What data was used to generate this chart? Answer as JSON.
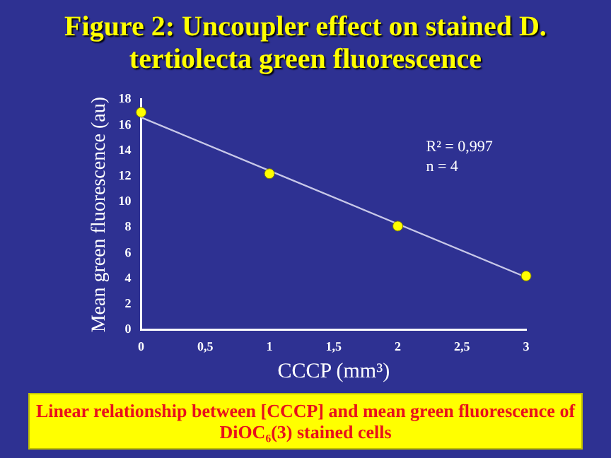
{
  "chart_data": {
    "type": "scatter",
    "title": "Figure 2: Uncoupler effect on stained D. tertiolecta green fluorescence",
    "xlabel": "CCCP (mm³)",
    "ylabel": "Mean green fluorescence (au)",
    "series": [
      {
        "type": "scatter",
        "color": "#ffff00",
        "marker": "circle",
        "x": [
          0,
          1,
          2,
          3
        ],
        "values": [
          17,
          12.2,
          8.1,
          4.2
        ]
      },
      {
        "type": "line",
        "color": "#c8c8e8",
        "x": [
          0,
          3
        ],
        "values": [
          16.6,
          4.1
        ]
      }
    ],
    "xlim": [
      0,
      3
    ],
    "xticks": [
      0,
      {
        "value": 0.5,
        "label": "0,5"
      },
      1,
      {
        "value": 1.5,
        "label": "1,5"
      },
      2,
      {
        "value": 2.5,
        "label": "2,5"
      },
      3
    ],
    "ylim": [
      0,
      18
    ],
    "yticks": [
      0,
      2,
      4,
      6,
      8,
      10,
      12,
      14,
      16,
      18
    ],
    "grid": false,
    "legend": false,
    "annotations": [
      "R² = 0,997",
      "n = 4",
      "Linear relationship between [CCCP] and mean green fluorescence of DiOC₆(3) stained cells"
    ]
  }
}
